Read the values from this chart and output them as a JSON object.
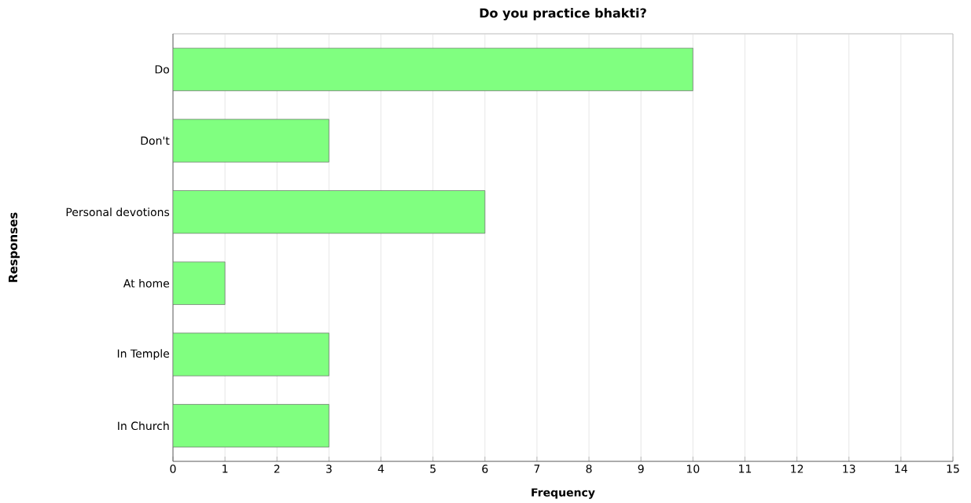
{
  "chart_data": {
    "type": "bar",
    "orientation": "horizontal",
    "title": "Do you practice bhakti?",
    "xlabel": "Frequency",
    "ylabel": "Responses",
    "categories": [
      "Do",
      "Don't",
      "Personal devotions",
      "At home",
      "In Temple",
      "In Church"
    ],
    "values": [
      10,
      3,
      6,
      1,
      3,
      3
    ],
    "color": "#80ff80",
    "xlim": [
      0,
      15
    ],
    "xticks": [
      0,
      1,
      2,
      3,
      4,
      5,
      6,
      7,
      8,
      9,
      10,
      11,
      12,
      13,
      14,
      15
    ],
    "grid": "x"
  }
}
